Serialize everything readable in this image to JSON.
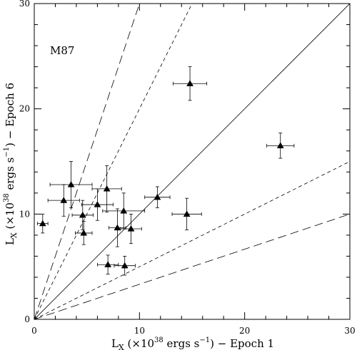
{
  "chart_data": {
    "type": "scatter",
    "annotation": "M87",
    "xlabel": {
      "base": "L",
      "sub": "X",
      "pre": " (×10",
      "sup1": "38",
      "mid": " ergs s",
      "sup2": "−1",
      "post": ") − Epoch 1"
    },
    "ylabel": {
      "base": "L",
      "sub": "X",
      "pre": " (×10",
      "sup1": "38",
      "mid": " ergs s",
      "sup2": "−1",
      "post": ") − Epoch 6"
    },
    "xlim": [
      0,
      30
    ],
    "ylim": [
      0,
      30
    ],
    "xticks": [
      0,
      10,
      20,
      30
    ],
    "yticks": [
      0,
      10,
      20,
      30
    ],
    "x_tick_labels": [
      "0",
      "10",
      "20",
      "30"
    ],
    "y_tick_labels": [
      "0",
      "10",
      "20",
      "30"
    ],
    "grid": false,
    "reference_lines": [
      {
        "slope": 1,
        "style": "solid"
      },
      {
        "slope": 2,
        "style": "short-dash"
      },
      {
        "slope": 0.5,
        "style": "short-dash"
      },
      {
        "slope": 3,
        "style": "long-dash"
      },
      {
        "slope": 0.3333,
        "style": "long-dash"
      }
    ],
    "points": [
      {
        "x": 0.8,
        "y": 9.1,
        "xerr": 0.5,
        "yerr": 0.9
      },
      {
        "x": 2.8,
        "y": 11.3,
        "xerr": 1.5,
        "yerr": 1.5
      },
      {
        "x": 3.5,
        "y": 12.8,
        "xerr": 2.0,
        "yerr": 2.2
      },
      {
        "x": 4.6,
        "y": 9.9,
        "xerr": 1.0,
        "yerr": 1.4
      },
      {
        "x": 4.7,
        "y": 8.2,
        "xerr": 0.8,
        "yerr": 1.1
      },
      {
        "x": 6.0,
        "y": 10.9,
        "xerr": 1.5,
        "yerr": 1.5
      },
      {
        "x": 6.9,
        "y": 12.4,
        "xerr": 1.4,
        "yerr": 2.2
      },
      {
        "x": 7.0,
        "y": 5.2,
        "xerr": 1.0,
        "yerr": 0.9
      },
      {
        "x": 7.9,
        "y": 8.7,
        "xerr": 0.8,
        "yerr": 1.8
      },
      {
        "x": 8.5,
        "y": 10.3,
        "xerr": 2.0,
        "yerr": 1.7
      },
      {
        "x": 8.6,
        "y": 5.1,
        "xerr": 1.0,
        "yerr": 0.9
      },
      {
        "x": 9.2,
        "y": 8.6,
        "xerr": 1.0,
        "yerr": 1.4
      },
      {
        "x": 11.7,
        "y": 11.6,
        "xerr": 1.2,
        "yerr": 1.0
      },
      {
        "x": 14.5,
        "y": 10.0,
        "xerr": 1.4,
        "yerr": 1.5
      },
      {
        "x": 14.8,
        "y": 22.4,
        "xerr": 1.6,
        "yerr": 1.6
      },
      {
        "x": 23.4,
        "y": 16.5,
        "xerr": 1.3,
        "yerr": 1.2
      }
    ]
  }
}
